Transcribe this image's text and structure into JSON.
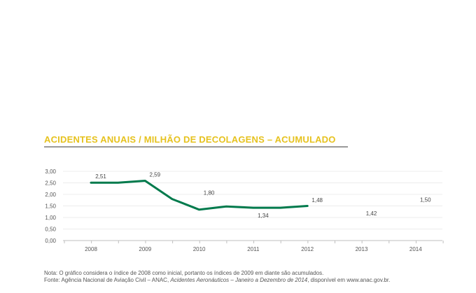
{
  "chart_data": {
    "type": "line",
    "title": "ACIDENTES ANUAIS / MILHÃO DE DECOLAGENS – ACUMULADO",
    "x": [
      "2008",
      "2009",
      "2010",
      "2011",
      "2012",
      "2013",
      "2014"
    ],
    "series": [
      {
        "values": [
          2.51,
          2.59,
          1.8,
          1.34,
          1.48,
          1.42,
          1.5
        ],
        "labels": [
          "2,51",
          "2,59",
          "1,80",
          "1,34",
          "1,48",
          "1,42",
          "1,50"
        ],
        "label_position": [
          "above",
          "above",
          "above",
          "below",
          "above",
          "below",
          "above"
        ],
        "color": "#007a4c"
      }
    ],
    "path_values": [
      2.51,
      2.51,
      2.59,
      1.8,
      1.34,
      1.48,
      1.42,
      1.42,
      1.5
    ],
    "y_ticks": [
      "0,00",
      "0,50",
      "1,00",
      "1,50",
      "2,00",
      "2,50",
      "3,00"
    ],
    "ylim": [
      0,
      3
    ],
    "grid": true,
    "title_color": "#e6c21f"
  },
  "notes": {
    "nota": "Nota: O gráfico considera o índice de 2008 como inicial, portanto os índices de 2009 em diante são acumulados.",
    "fonte_prefix": "Fonte: Agência Nacional de Aviação Civil – ANAC, ",
    "fonte_italic": "Acidentes Aeronáuticos – Janeiro a Dezembro de 2014",
    "fonte_suffix": ", disponível em www.anac.gov.br."
  }
}
